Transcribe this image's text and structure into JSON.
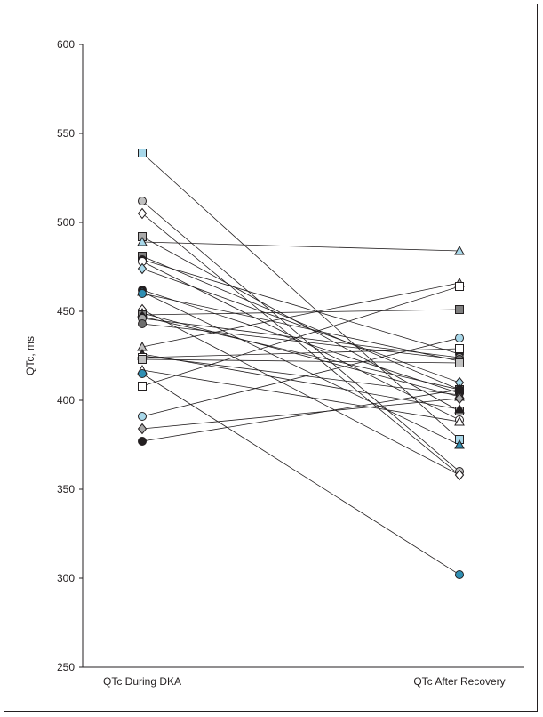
{
  "chart_data": {
    "type": "line",
    "categories": [
      "QTc During DKA",
      "QTc After Recovery"
    ],
    "ylabel": "QTc, ms",
    "ylim": [
      250,
      600
    ],
    "yticks": [
      250,
      300,
      350,
      400,
      450,
      500,
      550,
      600
    ],
    "grid": false,
    "legend": "none",
    "series": [
      {
        "values": [
          539,
          378
        ],
        "marker": "square",
        "color": "#a8d8ea"
      },
      {
        "values": [
          512,
          360
        ],
        "marker": "circle",
        "color": "#c0c0c0"
      },
      {
        "values": [
          505,
          358
        ],
        "marker": "diamond",
        "color": "#ffffff"
      },
      {
        "values": [
          492,
          394
        ],
        "marker": "square",
        "color": "#a9a9a9"
      },
      {
        "values": [
          489,
          484
        ],
        "marker": "triangle",
        "color": "#a8d8ea"
      },
      {
        "values": [
          481,
          406
        ],
        "marker": "square",
        "color": "#7f7f7f"
      },
      {
        "values": [
          479,
          426
        ],
        "marker": "circle",
        "color": "#231f20"
      },
      {
        "values": [
          478,
          389
        ],
        "marker": "circle",
        "color": "#ffffff"
      },
      {
        "values": [
          474,
          410
        ],
        "marker": "diamond",
        "color": "#a8d8ea"
      },
      {
        "values": [
          462,
          404
        ],
        "marker": "circle",
        "color": "#231f20"
      },
      {
        "values": [
          461,
          375
        ],
        "marker": "triangle",
        "color": "#2f8fb3"
      },
      {
        "values": [
          460,
          422
        ],
        "marker": "circle",
        "color": "#2f8fb3"
      },
      {
        "values": [
          451,
          358
        ],
        "marker": "diamond",
        "color": "#ffffff"
      },
      {
        "values": [
          449,
          402
        ],
        "marker": "triangle",
        "color": "#231f20"
      },
      {
        "values": [
          448,
          451
        ],
        "marker": "square",
        "color": "#7f7f7f"
      },
      {
        "values": [
          447,
          406
        ],
        "marker": "diamond",
        "color": "#231f20"
      },
      {
        "values": [
          446,
          424
        ],
        "marker": "circle",
        "color": "#a9a9a9"
      },
      {
        "values": [
          443,
          423
        ],
        "marker": "circle",
        "color": "#6e6e6e"
      },
      {
        "values": [
          430,
          466
        ],
        "marker": "triangle",
        "color": "#c0c0c0"
      },
      {
        "values": [
          426,
          395
        ],
        "marker": "triangle",
        "color": "#231f20"
      },
      {
        "values": [
          425,
          403
        ],
        "marker": "triangle",
        "color": "#6e6e6e"
      },
      {
        "values": [
          424,
          429
        ],
        "marker": "square",
        "color": "#ffffff"
      },
      {
        "values": [
          423,
          421
        ],
        "marker": "square",
        "color": "#c0c0c0"
      },
      {
        "values": [
          417,
          388
        ],
        "marker": "triangle",
        "color": "#ffffff"
      },
      {
        "values": [
          415,
          302
        ],
        "marker": "circle",
        "color": "#2f8fb3"
      },
      {
        "values": [
          408,
          464
        ],
        "marker": "square",
        "color": "#ffffff"
      },
      {
        "values": [
          391,
          435
        ],
        "marker": "circle",
        "color": "#a8d8ea"
      },
      {
        "values": [
          384,
          401
        ],
        "marker": "diamond",
        "color": "#a9a9a9"
      },
      {
        "values": [
          377,
          406
        ],
        "marker": "circle",
        "color": "#231f20"
      }
    ]
  }
}
